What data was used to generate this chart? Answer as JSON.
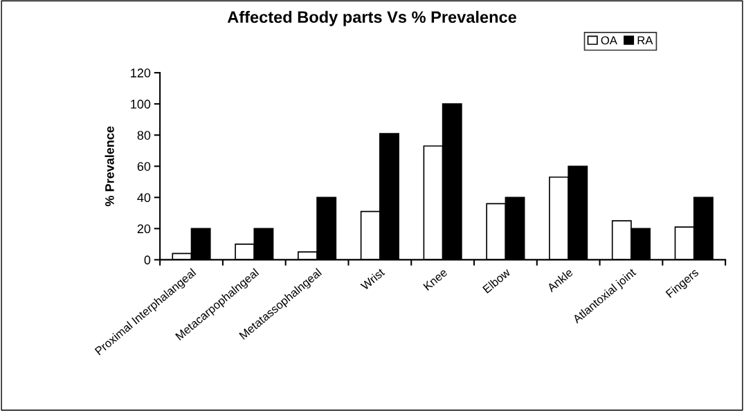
{
  "chart_data": {
    "type": "bar",
    "title": "Affected Body parts Vs % Prevalence",
    "ylabel": "% Prevalence",
    "categories": [
      "Proximal Interphalangeal",
      "Metacarpophalngeal",
      "Metatassophalngeal",
      "Wrist",
      "Knee",
      "Elbow",
      "Ankle",
      "Atlantoxial joint",
      "Fingers"
    ],
    "series": [
      {
        "name": "OA",
        "color": "#ffffff",
        "values": [
          4,
          10,
          5,
          31,
          73,
          36,
          53,
          25,
          21
        ]
      },
      {
        "name": "RA",
        "color": "#000000",
        "values": [
          20,
          20,
          40,
          81,
          100,
          40,
          60,
          20,
          40
        ]
      }
    ],
    "ylim": [
      0,
      120
    ],
    "yticks": [
      0,
      20,
      40,
      60,
      80,
      100,
      120
    ],
    "grid": false,
    "legend": "top right"
  }
}
